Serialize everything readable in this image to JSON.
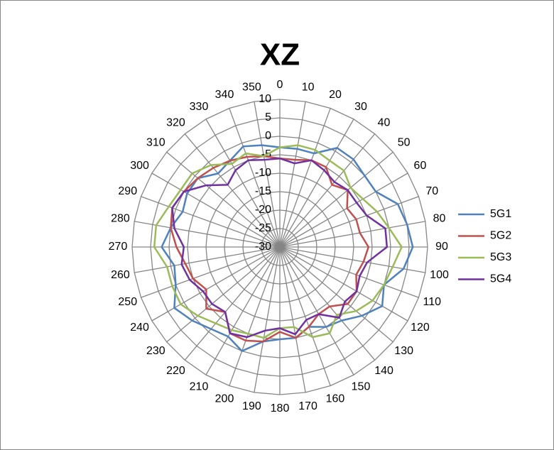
{
  "chart_data": {
    "type": "radar",
    "title": "XZ",
    "categories": [
      "0",
      "10",
      "20",
      "30",
      "40",
      "50",
      "60",
      "70",
      "80",
      "90",
      "100",
      "110",
      "120",
      "130",
      "140",
      "150",
      "160",
      "170",
      "180",
      "190",
      "200",
      "210",
      "220",
      "230",
      "240",
      "250",
      "260",
      "270",
      "280",
      "290",
      "300",
      "310",
      "320",
      "330",
      "340",
      "350"
    ],
    "ylim": [
      -30,
      10
    ],
    "yticks": [
      -30,
      -25,
      -20,
      -15,
      -10,
      -5,
      0,
      5,
      10
    ],
    "grid": true,
    "legend": "right",
    "series": [
      {
        "name": "5G1",
        "color": "#4f81bd",
        "values": [
          -3,
          -3,
          -3,
          1,
          1,
          0,
          0,
          4,
          5,
          6,
          4,
          0,
          2,
          -1,
          -4,
          -5,
          -7,
          -5,
          -5,
          -4,
          0,
          -2,
          -1,
          1,
          3,
          0,
          -1,
          2,
          0,
          -2,
          -1,
          -1,
          -4,
          -3,
          -1,
          -2
        ]
      },
      {
        "name": "5G2",
        "color": "#c0504d",
        "values": [
          -6,
          -6,
          -5,
          -5,
          -8,
          -6,
          -9,
          -8,
          -8,
          -6,
          -7,
          -8,
          -6,
          -6,
          -9,
          -9,
          -7,
          -5,
          -7,
          -4,
          -3,
          -3,
          -7,
          -4,
          -7,
          -5,
          -4,
          -2,
          0,
          1,
          0,
          -1,
          -2,
          -3,
          -4,
          -5
        ]
      },
      {
        "name": "5G3",
        "color": "#9bbb59",
        "values": [
          -3,
          -2,
          -2,
          -3,
          -3,
          -5,
          -4,
          -2,
          0,
          3,
          1,
          0,
          -1,
          -3,
          -6,
          -3,
          -4,
          -8,
          -8,
          -5,
          -5,
          -4,
          -3,
          -1,
          1,
          1,
          1,
          4,
          4,
          2,
          1,
          1,
          -1,
          -4,
          -3,
          -5
        ]
      },
      {
        "name": "5G4",
        "color": "#7030a0",
        "values": [
          -6,
          -7,
          -5,
          -6,
          -7,
          -6,
          -6,
          -5,
          -1,
          -1,
          -6,
          -7,
          -6,
          -7,
          -5,
          -9,
          -9,
          -6,
          -8,
          -7,
          -4,
          -3,
          -7,
          -6,
          -6,
          -4,
          -3,
          -4,
          -1,
          1,
          0,
          -4,
          -8,
          -6,
          -5,
          -6
        ]
      }
    ]
  }
}
